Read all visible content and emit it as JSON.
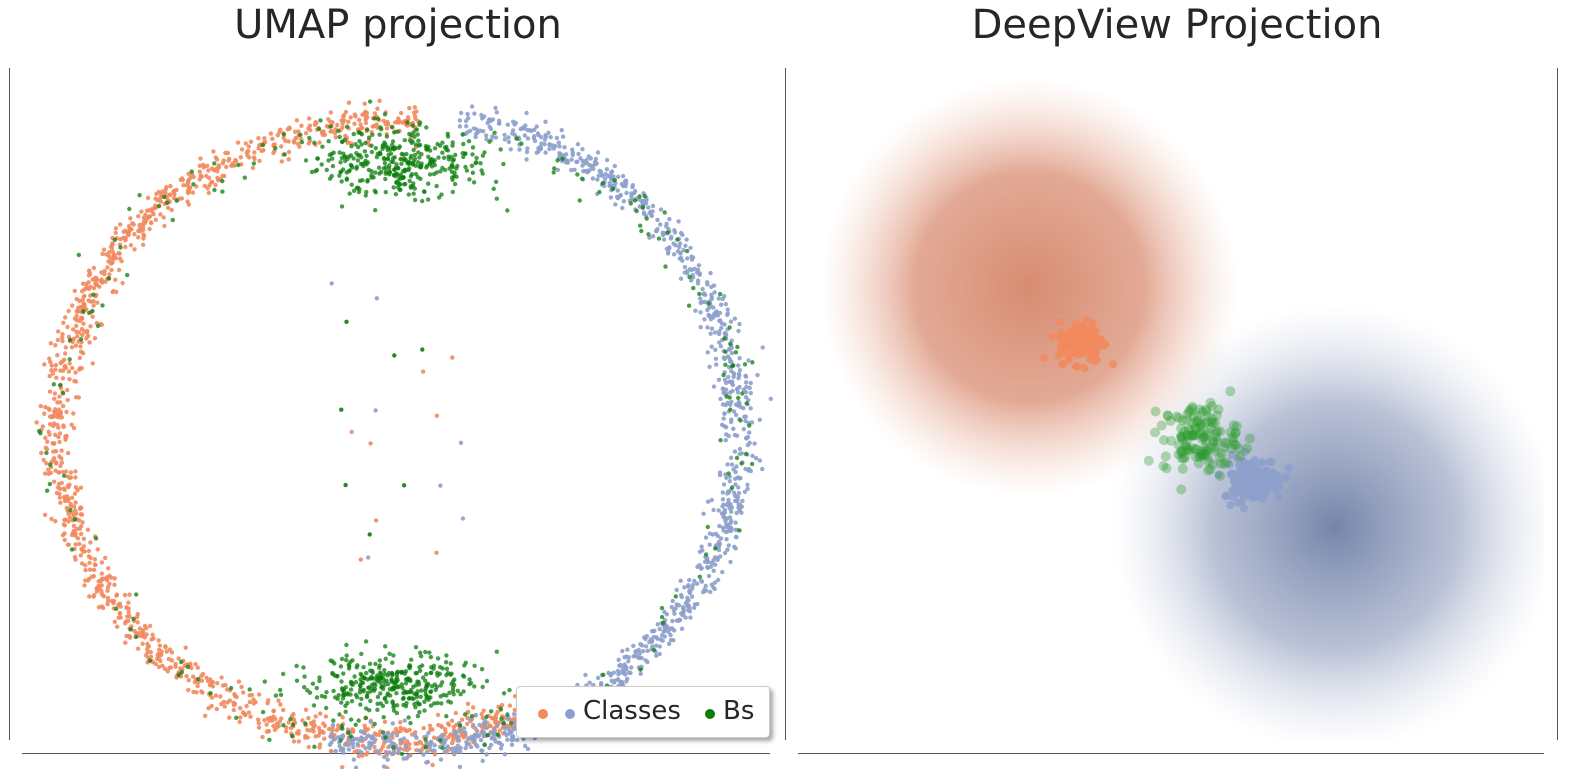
{
  "charts": [
    {
      "title": "UMAP projection",
      "type": "scatter",
      "colors": {
        "class_a": "#f28a5e",
        "class_b": "#8da0cb",
        "bs": "#0b7d0b"
      }
    },
    {
      "title": "DeepView Projection",
      "type": "scatter",
      "colors": {
        "class_a": "#f28a5e",
        "class_b": "#8da0cb",
        "bs": "#2a9a2a",
        "region_a": "#d5866a",
        "region_b": "#6e7fa6"
      }
    }
  ],
  "legend": {
    "classes_label": "Classes",
    "bs_label": "Bs"
  },
  "chart_data": [
    {
      "type": "scatter",
      "title": "UMAP projection",
      "xlabel": "",
      "ylabel": "",
      "xlim": [
        0,
        1
      ],
      "ylim": [
        0,
        1
      ],
      "grid": false,
      "legend": "bottom-right",
      "series": [
        {
          "name": "Class A (orange)",
          "n": 1300,
          "shape": "ring-left",
          "center": [
            0.49,
            0.47
          ],
          "radius": [
            0.43,
            0.45
          ],
          "angle_deg": [
            85,
            295
          ]
        },
        {
          "name": "Class B (blue)",
          "n": 1150,
          "shape": "ring-right",
          "center": [
            0.52,
            0.47
          ],
          "radius": [
            0.42,
            0.46
          ],
          "angle_deg": [
            -105,
            82
          ]
        },
        {
          "name": "Bs (green)",
          "n": 900,
          "shape": "clusters",
          "clusters": [
            [
              0.5,
              0.86
            ],
            [
              0.49,
              0.1
            ]
          ],
          "spread": 0.05
        }
      ],
      "legend_entries": [
        "Classes",
        "Bs"
      ]
    },
    {
      "type": "scatter",
      "title": "DeepView Projection",
      "xlabel": "",
      "ylabel": "",
      "xlim": [
        0,
        1
      ],
      "ylim": [
        0,
        1
      ],
      "grid": false,
      "background_regions": [
        {
          "name": "Class A region",
          "center": [
            0.31,
            0.68
          ],
          "radius": 0.28
        },
        {
          "name": "Class B region",
          "center": [
            0.72,
            0.33
          ],
          "radius": 0.3
        }
      ],
      "series": [
        {
          "name": "Class A (orange)",
          "n": 160,
          "center": [
            0.38,
            0.6
          ],
          "spread": 0.015
        },
        {
          "name": "Class B (blue)",
          "n": 160,
          "center": [
            0.61,
            0.4
          ],
          "spread": 0.02
        },
        {
          "name": "Bs (green)",
          "n": 140,
          "center": [
            0.54,
            0.46
          ],
          "spread": 0.025
        }
      ]
    }
  ]
}
